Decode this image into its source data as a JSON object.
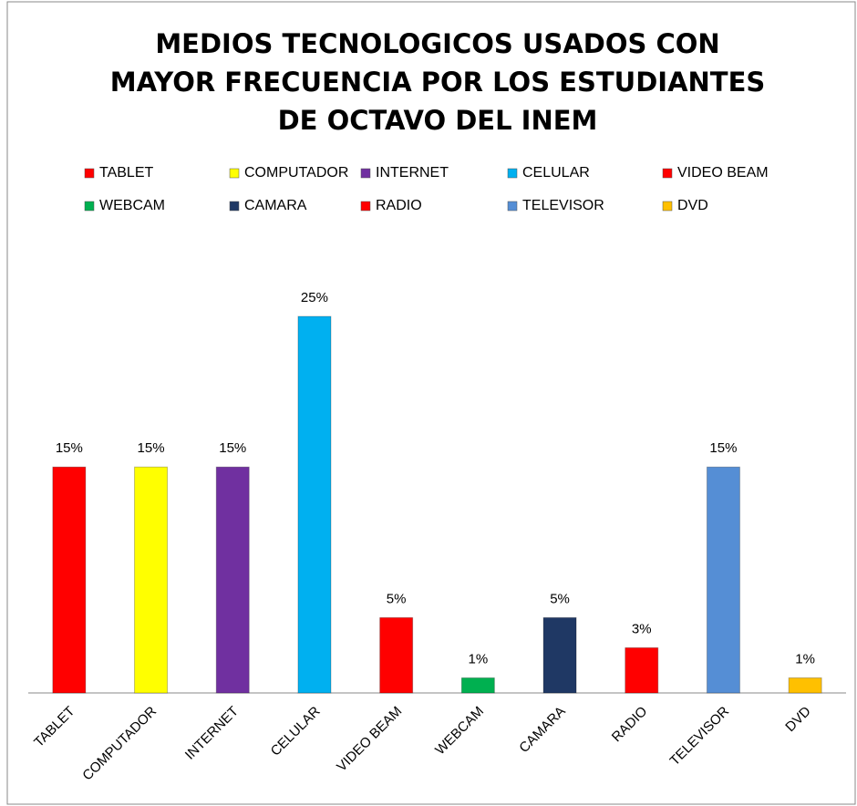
{
  "chart_data": {
    "type": "bar",
    "title": [
      "MEDIOS TECNOLOGICOS  USADOS CON",
      "MAYOR FRECUENCIA POR LOS ESTUDIANTES",
      "DE OCTAVO DEL INEM"
    ],
    "categories": [
      "TABLET",
      "COMPUTADOR",
      "INTERNET",
      "CELULAR",
      "VIDEO BEAM",
      "WEBCAM",
      "CAMARA",
      "RADIO",
      "TELEVISOR",
      "DVD"
    ],
    "values": [
      15,
      15,
      15,
      25,
      5,
      1,
      5,
      3,
      15,
      1
    ],
    "value_labels": [
      "15%",
      "15%",
      "15%",
      "25%",
      "5%",
      "1%",
      "5%",
      "3%",
      "15%",
      "1%"
    ],
    "colors": [
      "#ff0000",
      "#ffff00",
      "#7030a0",
      "#00b0f0",
      "#ff0000",
      "#00b050",
      "#1f3864",
      "#ff0000",
      "#558ed5",
      "#ffc000"
    ],
    "legend": "top"
  }
}
